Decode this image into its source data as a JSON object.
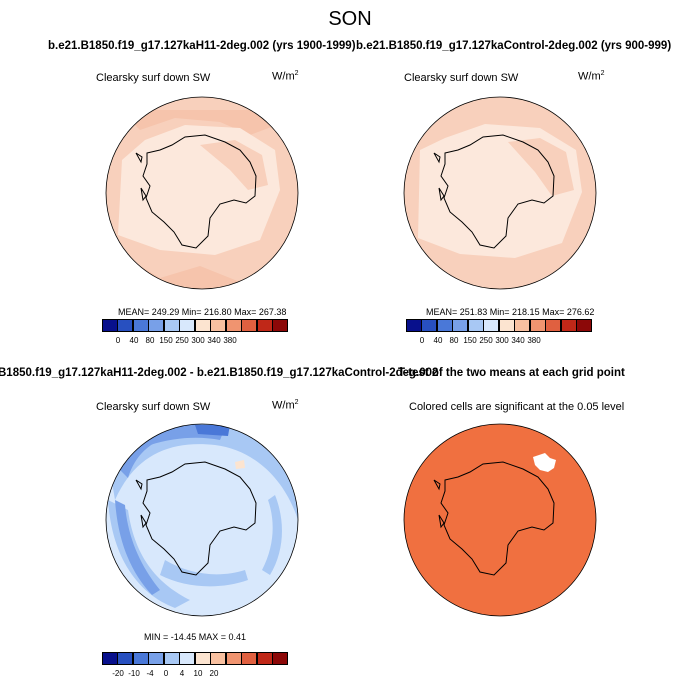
{
  "title": "SON",
  "panels": {
    "p1": {
      "subtitle": "b.e21.B1850.f19_g17.127kaH11-2deg.002 (yrs 1900-1999)",
      "variable": "Clearsky surf down SW",
      "units_base": "W/m",
      "units_exp": "2",
      "stats": "MEAN= 249.29  Min= 216.80  Max= 267.38"
    },
    "p2": {
      "subtitle": "b.e21.B1850.f19_g17.127kaControl-2deg.002 (yrs 900-999)",
      "variable": "Clearsky surf down SW",
      "units_base": "W/m",
      "units_exp": "2",
      "stats": "MEAN= 251.83  Min= 218.15  Max= 276.62"
    },
    "p3": {
      "subtitle": "B1850.f19_g17.127kaH11-2deg.002 - b.e21.B1850.f19_g17.127kaControl-2deg.002",
      "variable": "Clearsky surf down SW",
      "units_base": "W/m",
      "units_exp": "2",
      "stats": "MIN = -14.45  MAX =   0.41"
    },
    "p4": {
      "subtitle": "T-test of the two means at each grid point",
      "variable": "Colored cells are significant at the 0.05 level"
    }
  },
  "colorbar_abs": {
    "colors": [
      "#08108c",
      "#2850c0",
      "#4a78d8",
      "#78a0e8",
      "#a8c8f4",
      "#d8e8fc",
      "#fce4d0",
      "#f8c0a0",
      "#f09470",
      "#e06040",
      "#c02818",
      "#8c0808"
    ],
    "labels": [
      "0",
      "40",
      "80",
      "150",
      "250",
      "300",
      "340",
      "380"
    ]
  },
  "colorbar_diff": {
    "colors": [
      "#08108c",
      "#2850c0",
      "#4a78d8",
      "#78a0e8",
      "#a8c8f4",
      "#d8e8fc",
      "#fce4d0",
      "#f8c0a0",
      "#f09470",
      "#e06040",
      "#c02818",
      "#8c0808"
    ],
    "labels": [
      "-20",
      "-10",
      "-4",
      "0",
      "4",
      "10",
      "20"
    ]
  },
  "map_colors": {
    "abs_ocean": "#f8d0bc",
    "abs_land": "#fce8dc",
    "abs_patch": "#f6c4ac",
    "diff_base": "#d8e8fc",
    "diff_mid": "#a8c8f4",
    "diff_dark": "#78a0e8",
    "diff_darkest": "#4a78d8",
    "ttest": "#f07040"
  }
}
